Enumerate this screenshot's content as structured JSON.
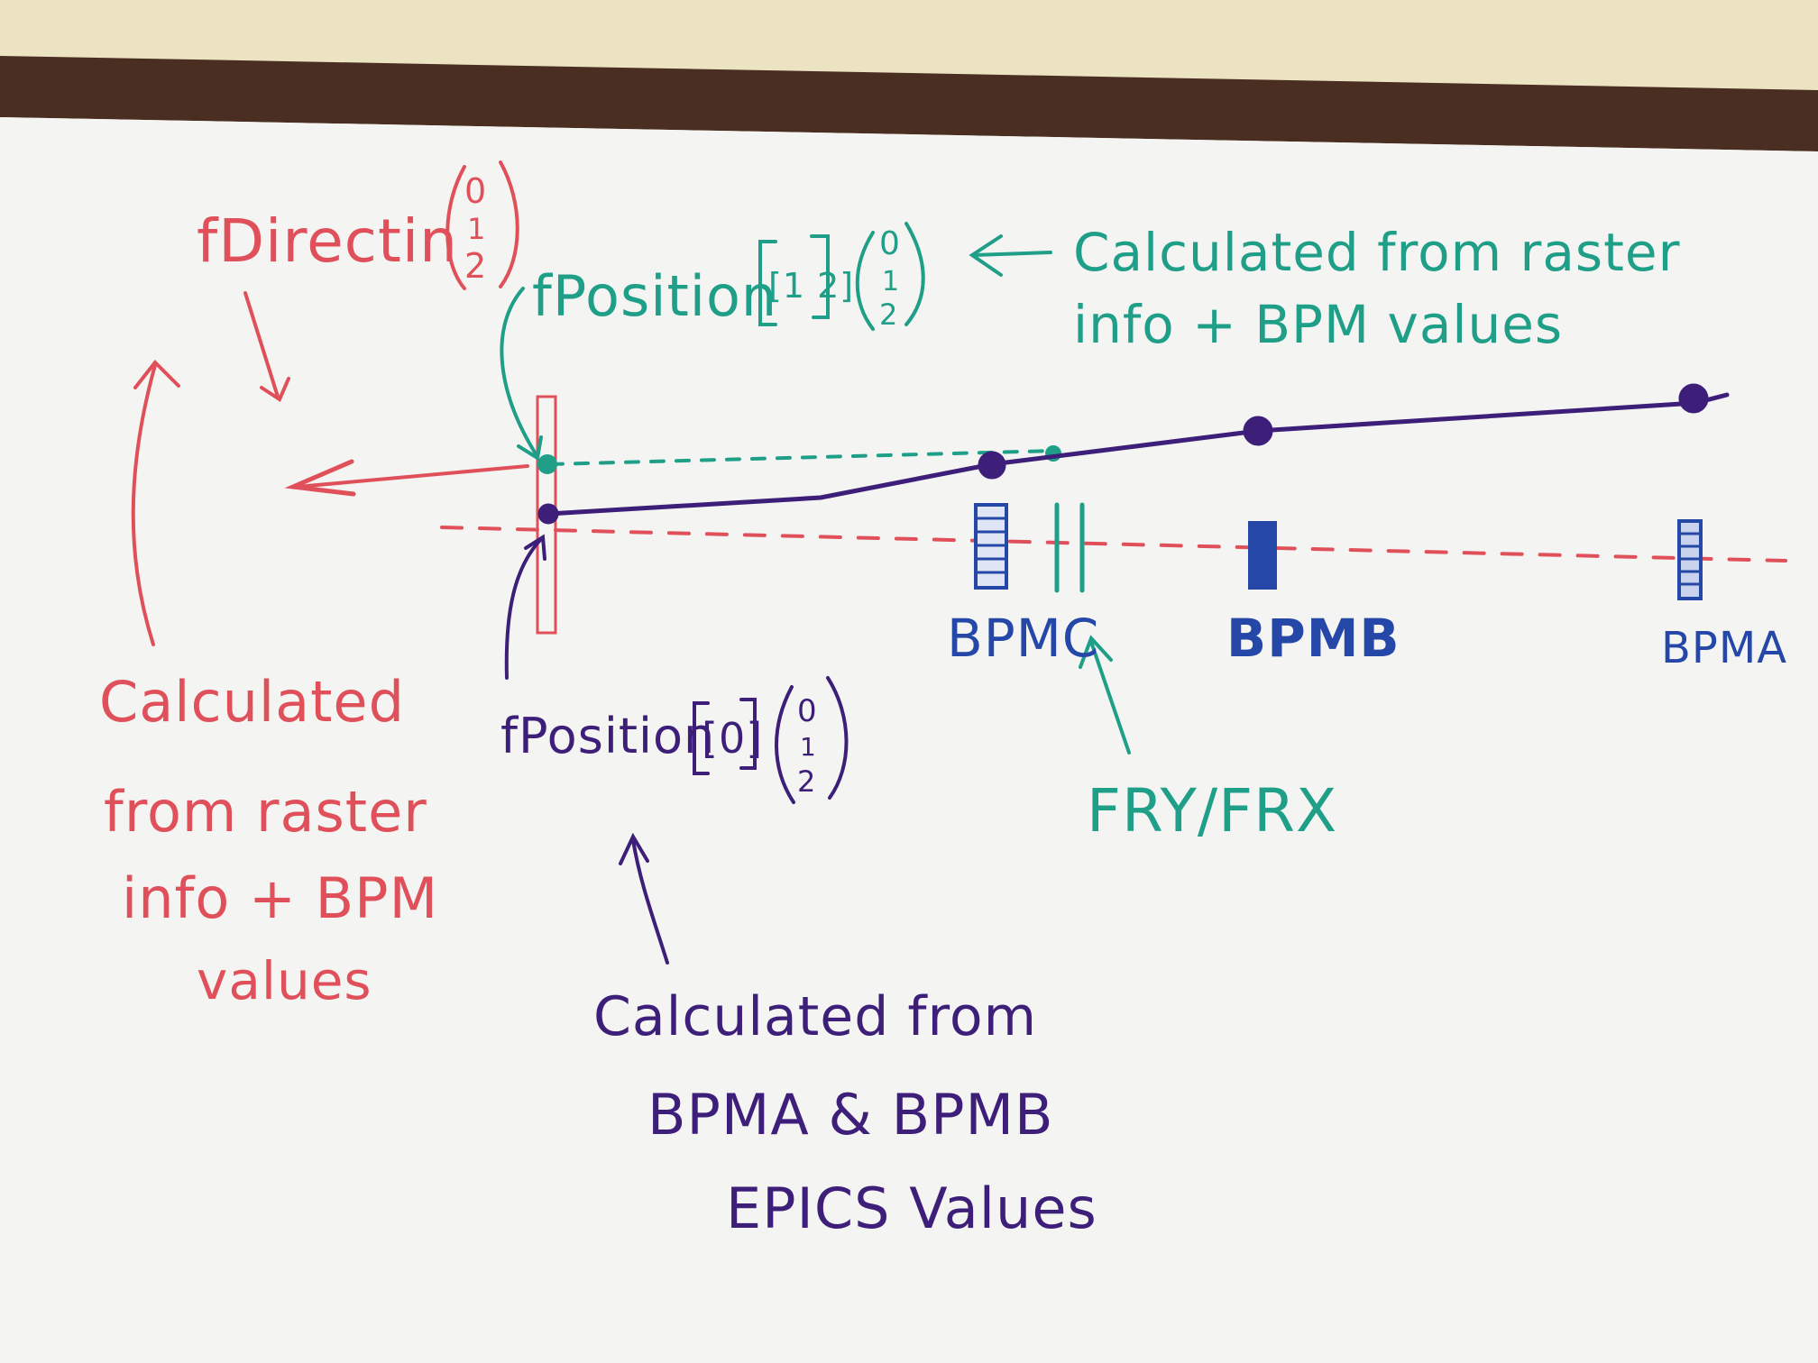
{
  "colors": {
    "red": "#e0505a",
    "green": "#1f9e88",
    "purple": "#3d1f7a",
    "blue": "#2447a8",
    "board": "#f4f4f2",
    "frame": "#4a2e22",
    "wall": "#ece3c2"
  },
  "labels": {
    "f_direction": "fDirectin",
    "f_direction_vec": [
      "0",
      "1",
      "2"
    ],
    "f_position_12": "fPosition",
    "f_position_12_index": "[1 2]",
    "f_position_12_vec": [
      "0",
      "1",
      "2"
    ],
    "green_note_line1": "Calculated from raster",
    "green_note_line2": "info + BPM values",
    "red_note": [
      "Calculated",
      "from raster",
      "info + BPM",
      "values"
    ],
    "f_position_0": "fPosition",
    "f_position_0_index": "[0]",
    "f_position_0_vec": [
      "0",
      "1",
      "2"
    ],
    "bpm_c": "BPMC",
    "bpm_b": "BPMB",
    "bpm_a": "BPMA",
    "fry_frx": "FRY/FRX",
    "purple_note": [
      "Calculated from",
      "BPMA & BPMB",
      "EPICS Values"
    ]
  }
}
